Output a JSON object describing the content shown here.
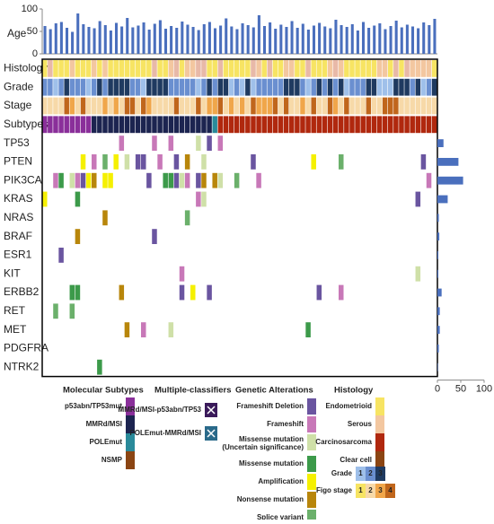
{
  "chart_data": [
    {
      "type": "bar",
      "y_label": "Age",
      "values": [
        62,
        55,
        68,
        71,
        58,
        49,
        90,
        66,
        60,
        57,
        73,
        64,
        52,
        69,
        61,
        80,
        59,
        63,
        70,
        54,
        67,
        75,
        56,
        62,
        58,
        72,
        65,
        60,
        53,
        66,
        71,
        57,
        63,
        79,
        61,
        55,
        68,
        64,
        59,
        86,
        62,
        70,
        56,
        65,
        60,
        73,
        58,
        67,
        54,
        63,
        69,
        61,
        57,
        76,
        64,
        60,
        66,
        52,
        71,
        58,
        63,
        68,
        55,
        62,
        74,
        59,
        65,
        61,
        57,
        70,
        64,
        78
      ],
      "color": "#4a6fbd",
      "ylim": [
        0,
        100
      ],
      "yticks": [
        0,
        50,
        100
      ]
    },
    {
      "type": "oncoprint",
      "clinical_rows": [
        "Histology",
        "Grade",
        "Stage",
        "Subtypes"
      ],
      "genes": [
        "TP53",
        "PTEN",
        "PIK3CA",
        "KRAS",
        "NRAS",
        "BRAF",
        "ESR1",
        "KIT",
        "ERBB2",
        "RET",
        "MET",
        "PDGFRA",
        "NTRK2"
      ]
    },
    {
      "type": "hbar",
      "categories": [
        "TP53",
        "PTEN",
        "PIK3CA",
        "KRAS",
        "NRAS",
        "BRAF",
        "ESR1",
        "KIT",
        "ERBB2",
        "RET",
        "MET",
        "PDGFRA",
        "NTRK2"
      ],
      "values": [
        13,
        45,
        55,
        22,
        3,
        4,
        2,
        2,
        9,
        5,
        5,
        3,
        1
      ],
      "color": "#4a6fbd",
      "xlim": [
        0,
        100
      ],
      "xticks": [
        0,
        50,
        100
      ]
    }
  ],
  "legend": {
    "molecular": {
      "title": "Molecular Subtypes",
      "items": [
        "p53abn/TP53mut",
        "MMRd/MSI",
        "POLEmut",
        "NSMP"
      ]
    },
    "multiple": {
      "title": "Multiple-classifiers",
      "items": [
        "MMRd/MSI-p53abn/TP53",
        "POLEmut-MMRd/MSI"
      ]
    },
    "genetic": {
      "title": "Genetic Alterations",
      "items": [
        "Frameshift Deletion",
        "Frameshift",
        "Missense mutation",
        "Missense mutation",
        "Amplification",
        "Nonsense mutation",
        "Splice variant"
      ],
      "note": "(Uncertain significance)"
    },
    "histology": {
      "title": "Histology",
      "items": [
        "Endometrioid",
        "Serous",
        "Carcinosarcoma",
        "Clear cell"
      ]
    },
    "grade": {
      "title": "Grade",
      "levels": [
        "1",
        "2",
        "3"
      ]
    },
    "stage": {
      "title": "Figo stage",
      "levels": [
        "1",
        "2",
        "3",
        "4"
      ]
    }
  }
}
